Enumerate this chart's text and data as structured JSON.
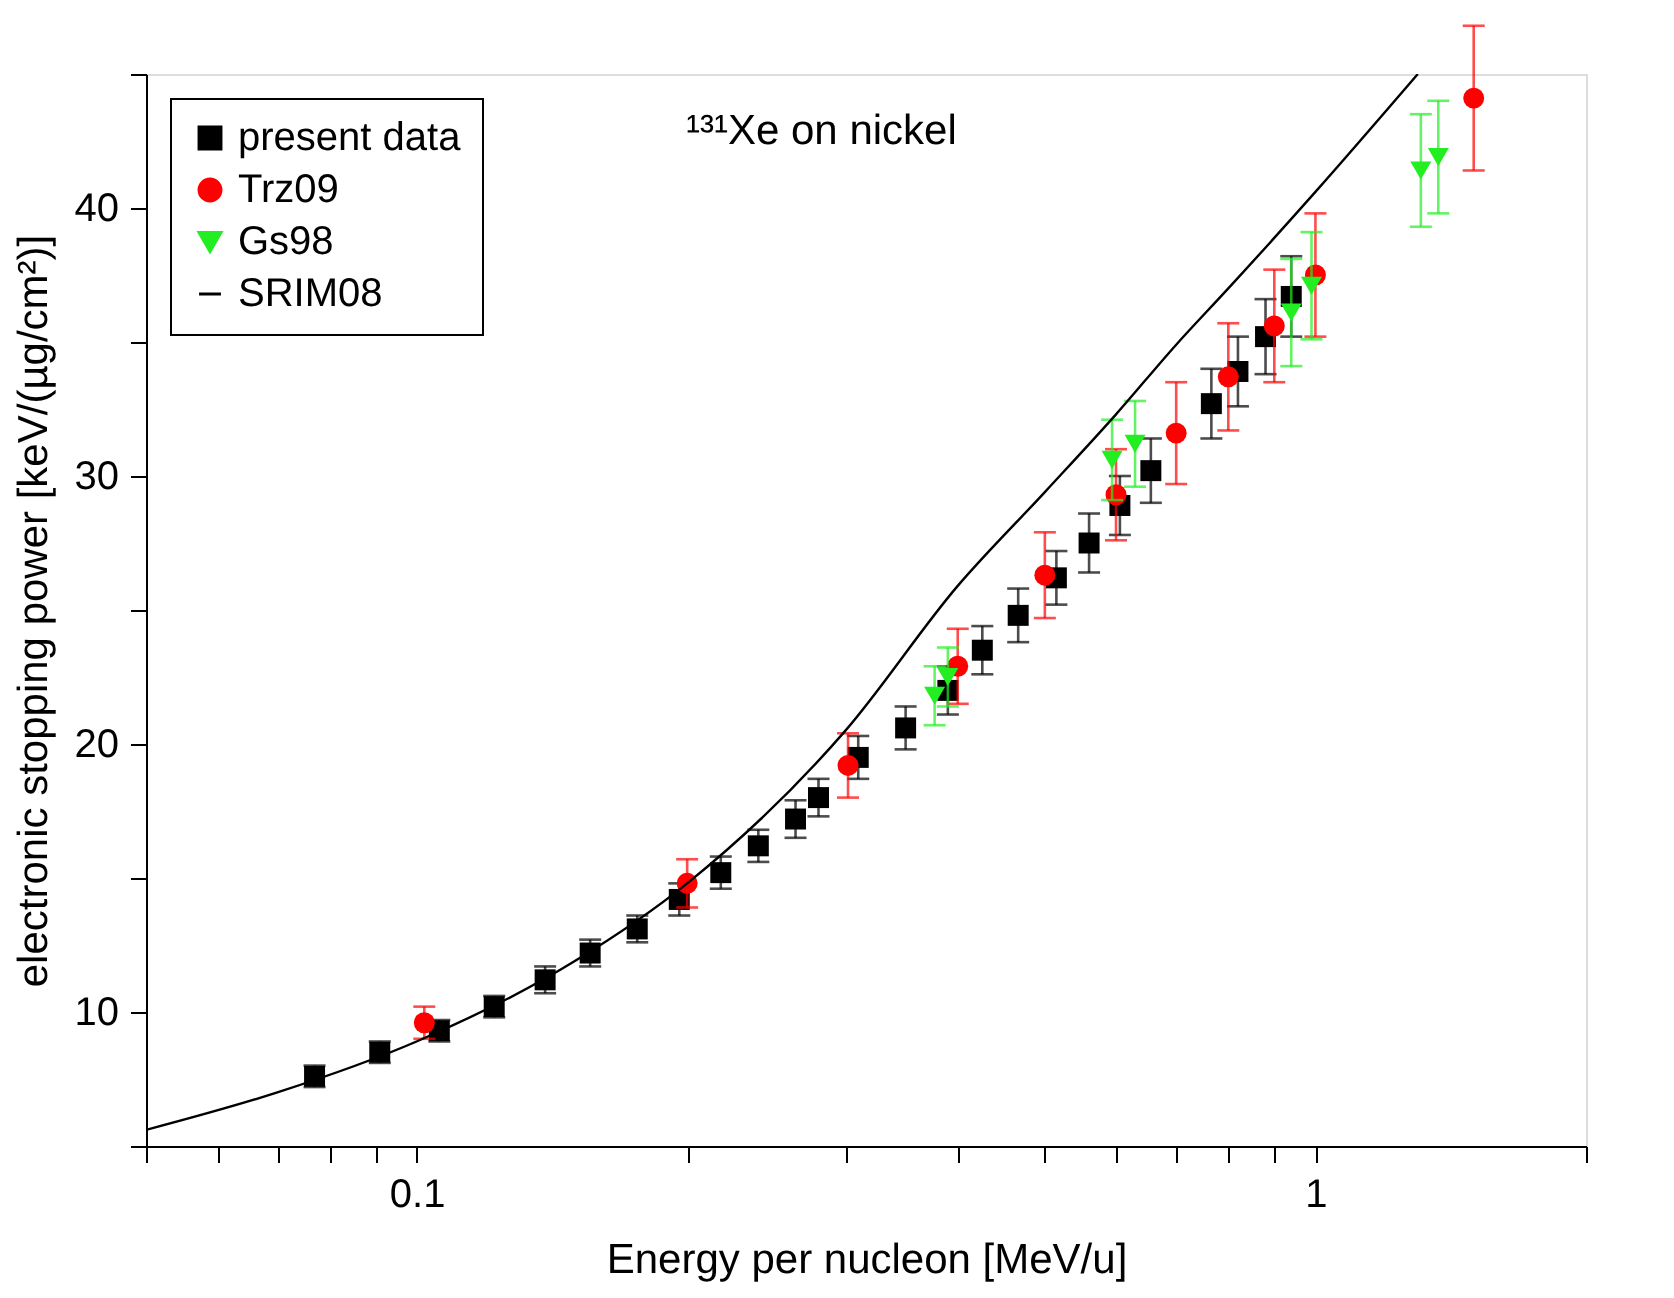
{
  "chart_data": {
    "type": "scatter",
    "xlabel": "Energy per nucleon [MeV/u]",
    "ylabel": "electronic stopping power [keV/(µg/cm²)]",
    "annotations": [
      "¹³¹Xe on nickel"
    ],
    "log": "x",
    "grid": false,
    "legend": "top left",
    "xlim": [
      0.05,
      2
    ],
    "ylim": [
      5,
      45
    ],
    "xticks": [
      {
        "value": 0.05,
        "label": null
      },
      {
        "value": 0.06,
        "label": null
      },
      {
        "value": 0.07,
        "label": null
      },
      {
        "value": 0.08,
        "label": null
      },
      {
        "value": 0.09,
        "label": null
      },
      0.1,
      {
        "value": 0.2,
        "label": null
      },
      {
        "value": 0.3,
        "label": null
      },
      {
        "value": 0.4,
        "label": null
      },
      {
        "value": 0.5,
        "label": null
      },
      {
        "value": 0.6,
        "label": null
      },
      {
        "value": 0.7,
        "label": null
      },
      {
        "value": 0.8,
        "label": null
      },
      {
        "value": 0.9,
        "label": null
      },
      1,
      {
        "value": 2,
        "label": null
      }
    ],
    "yticks": [
      {
        "value": 5,
        "label": null
      },
      10,
      {
        "value": 15,
        "label": null
      },
      20,
      {
        "value": 25,
        "label": null
      },
      30,
      {
        "value": 35,
        "label": null
      },
      40,
      {
        "value": 45,
        "label": null
      }
    ],
    "series": [
      {
        "name": "present data",
        "marker": "square",
        "color": "#000000",
        "x": [
          0.077,
          0.091,
          0.106,
          0.122,
          0.139,
          0.156,
          0.176,
          0.196,
          0.218,
          0.24,
          0.264,
          0.28,
          0.31,
          0.35,
          0.39,
          0.426,
          0.467,
          0.515,
          0.56,
          0.606,
          0.656,
          0.766,
          0.82,
          0.88,
          0.94
        ],
        "values": [
          7.6,
          8.5,
          9.3,
          10.2,
          11.2,
          12.2,
          13.1,
          14.2,
          15.2,
          16.2,
          17.2,
          18.0,
          19.5,
          20.6,
          22.0,
          23.5,
          24.8,
          26.2,
          27.5,
          28.9,
          30.2,
          32.7,
          33.9,
          35.2,
          36.7
        ],
        "errors": [
          0.4,
          0.4,
          0.4,
          0.4,
          0.5,
          0.5,
          0.5,
          0.6,
          0.6,
          0.6,
          0.7,
          0.7,
          0.8,
          0.8,
          0.9,
          0.9,
          1.0,
          1.0,
          1.1,
          1.1,
          1.2,
          1.3,
          1.3,
          1.4,
          1.5
        ]
      },
      {
        "name": "Trz09",
        "marker": "circle",
        "color": "#ff0000",
        "x": [
          0.102,
          0.2,
          0.302,
          0.4,
          0.5,
          0.6,
          0.7,
          0.8,
          0.9,
          1.0,
          1.5
        ],
        "values": [
          9.6,
          14.8,
          19.2,
          22.9,
          26.3,
          29.3,
          31.6,
          33.7,
          35.6,
          37.5,
          44.1
        ],
        "errors": [
          0.6,
          0.9,
          1.2,
          1.4,
          1.6,
          1.7,
          1.9,
          2.0,
          2.1,
          2.3,
          2.7
        ]
      },
      {
        "name": "Gs98",
        "marker": "triangle",
        "color": "#22ee22",
        "x": [
          0.377,
          0.39,
          0.594,
          0.63,
          0.94,
          0.99,
          1.31,
          1.37
        ],
        "values": [
          21.8,
          22.5,
          30.6,
          31.2,
          36.1,
          37.1,
          41.4,
          41.9
        ],
        "errors": [
          1.1,
          1.1,
          1.5,
          1.6,
          2.0,
          2.0,
          2.1,
          2.1
        ]
      },
      {
        "name": "SRIM08",
        "type": "line",
        "marker": "none",
        "line_style": "solid",
        "color": "#000000",
        "x": [
          0.05,
          0.07,
          0.1,
          0.15,
          0.2,
          0.3,
          0.4,
          0.5,
          0.6,
          0.7,
          0.8,
          1.0,
          1.3
        ],
        "values": [
          5.6,
          7.0,
          8.9,
          11.9,
          14.8,
          20.5,
          25.9,
          29.4,
          32.3,
          34.9,
          37.0,
          40.6,
          45.0
        ]
      }
    ]
  }
}
